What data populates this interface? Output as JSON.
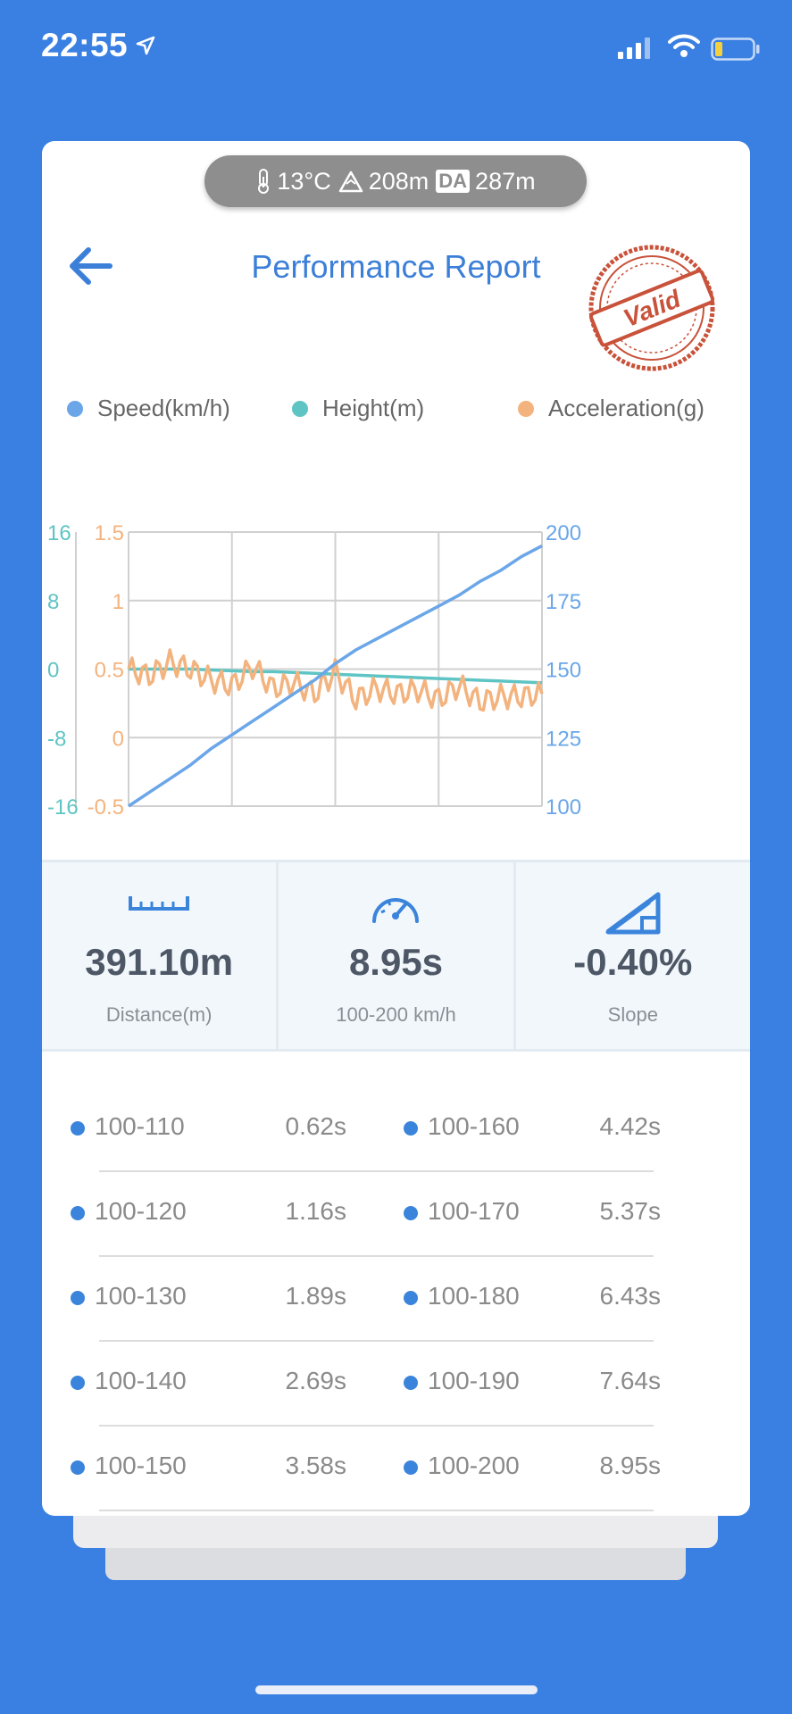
{
  "status_bar": {
    "time": "22:55"
  },
  "environment": {
    "temperature": "13°C",
    "altitude": "208m",
    "da_label": "DA",
    "density_altitude": "287m"
  },
  "header": {
    "title": "Performance Report",
    "stamp_text": "Valid"
  },
  "colors": {
    "speed": "#6aa6e8",
    "height": "#5fc4c4",
    "acceleration": "#f3b37e",
    "accent": "#3c7fd8",
    "stamp": "#c8523a"
  },
  "legend": [
    {
      "label": "Speed(km/h)",
      "color": "#6aa6e8"
    },
    {
      "label": "Height(m)",
      "color": "#5fc4c4"
    },
    {
      "label": "Acceleration(g)",
      "color": "#f3b37e"
    }
  ],
  "chart_data": {
    "type": "line",
    "x": [
      0,
      1,
      2,
      3,
      4,
      5,
      6,
      7,
      8,
      9,
      10,
      11,
      12,
      13,
      14,
      15,
      16,
      17,
      18,
      19,
      20
    ],
    "series": [
      {
        "name": "Speed(km/h)",
        "axis": "right",
        "values": [
          100,
          105,
          110,
          115,
          121,
          126,
          131,
          136,
          141,
          146,
          152,
          157,
          161,
          165,
          169,
          173,
          177,
          182,
          186,
          191,
          195
        ]
      },
      {
        "name": "Height(m)",
        "axis": "left-outer",
        "values": [
          0,
          0,
          0,
          0,
          -0.1,
          -0.2,
          -0.3,
          -0.3,
          -0.4,
          -0.5,
          -0.6,
          -0.7,
          -0.8,
          -0.9,
          -1.0,
          -1.1,
          -1.2,
          -1.3,
          -1.4,
          -1.5,
          -1.6
        ]
      },
      {
        "name": "Acceleration(g)",
        "axis": "left-inner",
        "values": [
          0.5,
          0.45,
          0.55,
          0.5,
          0.42,
          0.38,
          0.52,
          0.36,
          0.4,
          0.32,
          0.48,
          0.28,
          0.36,
          0.32,
          0.35,
          0.28,
          0.38,
          0.26,
          0.3,
          0.3,
          0.32
        ]
      }
    ],
    "axes": {
      "left_outer": {
        "ticks": [
          "16",
          "8",
          "0",
          "-8",
          "-16"
        ],
        "range": [
          -16,
          16
        ],
        "color": "#5fc4c4"
      },
      "left_inner": {
        "ticks": [
          "1.5",
          "1",
          "0.5",
          "0",
          "-0.5"
        ],
        "range": [
          -0.5,
          1.5
        ],
        "color": "#f3b37e"
      },
      "right": {
        "ticks": [
          "200",
          "175",
          "150",
          "125",
          "100"
        ],
        "range": [
          100,
          200
        ],
        "color": "#6aa6e8"
      }
    },
    "grid": true,
    "legend_position": "top"
  },
  "stats": [
    {
      "icon": "ruler-icon",
      "value": "391.10m",
      "label": "Distance(m)"
    },
    {
      "icon": "speedometer-icon",
      "value": "8.95s",
      "label": "100-200 km/h"
    },
    {
      "icon": "slope-icon",
      "value": "-0.40%",
      "label": "Slope"
    }
  ],
  "splits": [
    {
      "left": {
        "range": "100-110",
        "time": "0.62s"
      },
      "right": {
        "range": "100-160",
        "time": "4.42s"
      }
    },
    {
      "left": {
        "range": "100-120",
        "time": "1.16s"
      },
      "right": {
        "range": "100-170",
        "time": "5.37s"
      }
    },
    {
      "left": {
        "range": "100-130",
        "time": "1.89s"
      },
      "right": {
        "range": "100-180",
        "time": "6.43s"
      }
    },
    {
      "left": {
        "range": "100-140",
        "time": "2.69s"
      },
      "right": {
        "range": "100-190",
        "time": "7.64s"
      }
    },
    {
      "left": {
        "range": "100-150",
        "time": "3.58s"
      },
      "right": {
        "range": "100-200",
        "time": "8.95s"
      }
    }
  ]
}
